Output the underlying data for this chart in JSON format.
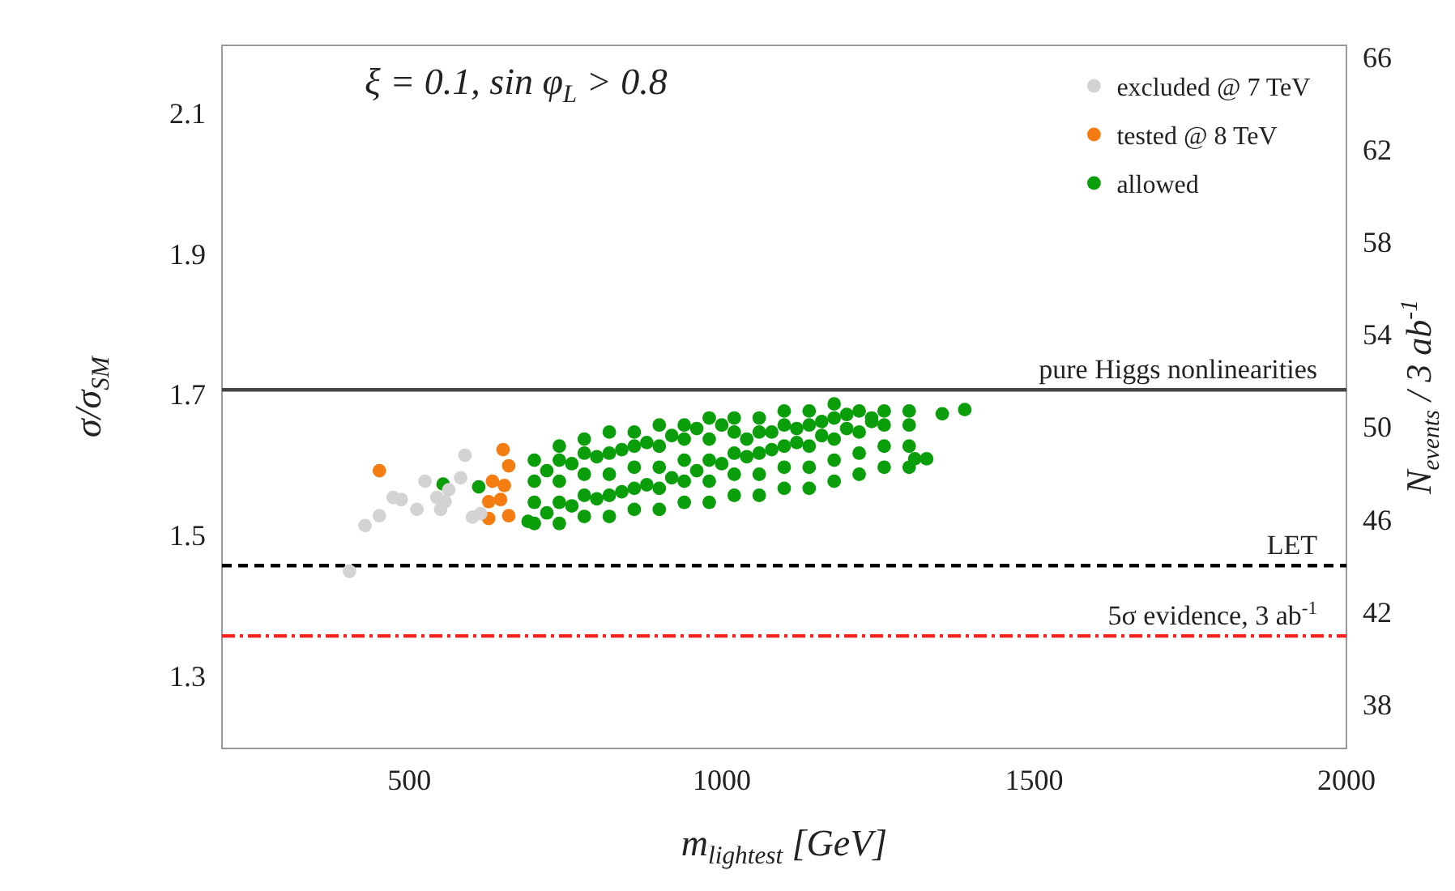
{
  "chart_data": {
    "type": "scatter",
    "xlabel": "m$_{lightest}$ [GeV]",
    "ylabel": "σ/σ$_{SM}$",
    "y2label": "N$_{events}$ / 3 ab$^{-1}$",
    "annotations": [
      "ξ = 0.1, sin φ$_{L}$ > 0.8"
    ],
    "xlim": [
      200,
      2000
    ],
    "xticks": [
      500,
      1000,
      1500,
      2000
    ],
    "ylim": [
      1.2,
      2.2
    ],
    "yticks": [
      1.3,
      1.5,
      1.7,
      1.9,
      2.1
    ],
    "y2lim": [
      36.2,
      66.6
    ],
    "y2ticks": [
      38,
      42,
      46,
      50,
      54,
      58,
      62,
      66
    ],
    "grid": false,
    "legend": "top right",
    "marker": "circle",
    "ref_lines": [
      {
        "axis": "y",
        "value": 1.71,
        "label": "pure Higgs nonlinearities",
        "color": "#444444",
        "line_style": "solid"
      },
      {
        "axis": "y",
        "value": 1.46,
        "label": "LET",
        "color": "#000000",
        "line_style": "dashed"
      },
      {
        "axis": "y",
        "value": 1.36,
        "label": "5σ evidence, 3 ab$^{-1}$",
        "color": "#ff2020",
        "line_style": "dashdot"
      }
    ],
    "series": [
      {
        "name": "excluded @ 7 TeV",
        "color": "#d3d3d3",
        "x": [
          404,
          429,
          452,
          474,
          512,
          550,
          557,
          563,
          589,
          582,
          601,
          614,
          525,
          487,
          544
        ],
        "values": [
          1.452,
          1.517,
          1.531,
          1.557,
          1.54,
          1.54,
          1.551,
          1.568,
          1.617,
          1.585,
          1.529,
          1.534,
          1.58,
          1.554,
          1.557
        ]
      },
      {
        "name": "tested @ 8 TeV",
        "color": "#f47c10",
        "x": [
          452,
          627,
          659,
          650,
          659,
          633,
          646,
          627,
          652
        ],
        "values": [
          1.595,
          1.527,
          1.531,
          1.625,
          1.602,
          1.58,
          1.554,
          1.551,
          1.574
        ]
      },
      {
        "name": "allowed",
        "color": "#0a9e0a",
        "x": [
          554,
          611,
          690,
          1353,
          1389,
          1309,
          1328,
          700,
          700,
          700,
          700,
          740,
          740,
          740,
          740,
          740,
          780,
          780,
          780,
          780,
          780,
          820,
          820,
          820,
          820,
          820,
          860,
          860,
          860,
          860,
          860,
          900,
          900,
          900,
          900,
          900,
          940,
          940,
          940,
          940,
          940,
          980,
          980,
          980,
          980,
          980,
          1020,
          1020,
          1020,
          1020,
          1020,
          1060,
          1060,
          1060,
          1060,
          1060,
          1100,
          1100,
          1100,
          1100,
          1100,
          1140,
          1140,
          1140,
          1140,
          1140,
          1180,
          1180,
          1180,
          1180,
          1180,
          1220,
          1220,
          1220,
          1220,
          1260,
          1260,
          1260,
          1260,
          1300,
          1300,
          1300,
          1300,
          720,
          760,
          800,
          840,
          880,
          920,
          960,
          1000,
          1040,
          1080,
          1120,
          1160,
          1200,
          1240,
          720,
          760,
          800,
          840,
          880,
          920,
          960,
          1000,
          1040,
          1080,
          1120,
          1160,
          1200,
          1240
        ],
        "values": [
          1.576,
          1.572,
          1.523,
          1.676,
          1.682,
          1.612,
          1.612,
          1.52,
          1.55,
          1.58,
          1.61,
          1.52,
          1.55,
          1.58,
          1.61,
          1.63,
          1.53,
          1.56,
          1.59,
          1.62,
          1.64,
          1.53,
          1.56,
          1.59,
          1.62,
          1.65,
          1.54,
          1.57,
          1.6,
          1.63,
          1.65,
          1.54,
          1.57,
          1.6,
          1.63,
          1.66,
          1.55,
          1.58,
          1.61,
          1.64,
          1.66,
          1.55,
          1.58,
          1.61,
          1.64,
          1.67,
          1.56,
          1.59,
          1.62,
          1.65,
          1.67,
          1.56,
          1.59,
          1.62,
          1.65,
          1.67,
          1.57,
          1.6,
          1.63,
          1.66,
          1.68,
          1.57,
          1.6,
          1.63,
          1.66,
          1.68,
          1.58,
          1.61,
          1.64,
          1.67,
          1.69,
          1.59,
          1.62,
          1.65,
          1.68,
          1.6,
          1.63,
          1.66,
          1.68,
          1.6,
          1.63,
          1.66,
          1.68,
          1.535,
          1.545,
          1.555,
          1.565,
          1.575,
          1.585,
          1.595,
          1.605,
          1.615,
          1.625,
          1.635,
          1.645,
          1.655,
          1.665,
          1.595,
          1.605,
          1.615,
          1.625,
          1.635,
          1.645,
          1.655,
          1.66,
          1.64,
          1.65,
          1.655,
          1.665,
          1.675,
          1.67
        ]
      }
    ]
  }
}
